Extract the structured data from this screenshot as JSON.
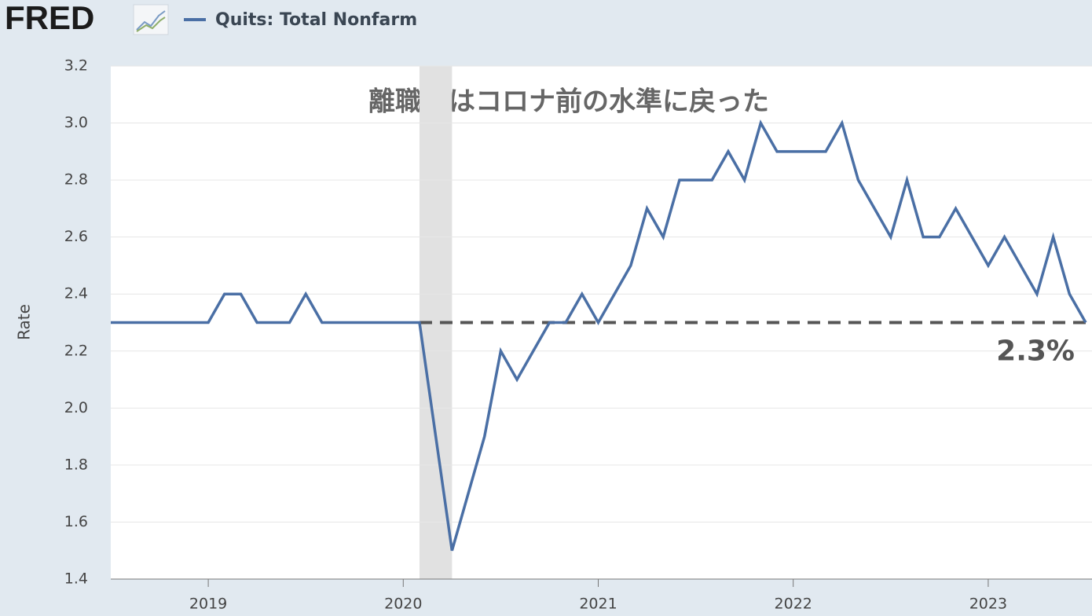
{
  "logo": "FRED",
  "chart_data": {
    "type": "line",
    "legend": "Quits: Total Nonfarm",
    "y_label": "Rate",
    "annotation": "離職率はコロナ前の水準に戻った",
    "reference_line": {
      "value": 2.3,
      "label": "2.3%",
      "color": "#555555"
    },
    "recession": [
      2020.0833,
      2020.25
    ],
    "x": [
      2018.5,
      2018.5833,
      2018.6667,
      2018.75,
      2018.8333,
      2018.9167,
      2019,
      2019.0833,
      2019.1667,
      2019.25,
      2019.3333,
      2019.4167,
      2019.5,
      2019.5833,
      2019.6667,
      2019.75,
      2019.8333,
      2019.9167,
      2020,
      2020.0833,
      2020.1667,
      2020.25,
      2020.3333,
      2020.4167,
      2020.5,
      2020.5833,
      2020.6667,
      2020.75,
      2020.8333,
      2020.9167,
      2021,
      2021.0833,
      2021.1667,
      2021.25,
      2021.3333,
      2021.4167,
      2021.5,
      2021.5833,
      2021.6667,
      2021.75,
      2021.8333,
      2021.9167,
      2022,
      2022.0833,
      2022.1667,
      2022.25,
      2022.3333,
      2022.4167,
      2022.5,
      2022.5833,
      2022.6667,
      2022.75,
      2022.8333,
      2022.9167,
      2023,
      2023.0833,
      2023.1667,
      2023.25,
      2023.3333,
      2023.4167,
      2023.5
    ],
    "series": [
      {
        "name": "Quits: Total Nonfarm",
        "color": "#4a6fa5",
        "values": [
          2.3,
          2.3,
          2.3,
          2.3,
          2.3,
          2.3,
          2.3,
          2.4,
          2.4,
          2.3,
          2.3,
          2.3,
          2.4,
          2.3,
          2.3,
          2.3,
          2.3,
          2.3,
          2.3,
          2.3,
          1.9,
          1.5,
          1.7,
          1.9,
          2.2,
          2.1,
          2.2,
          2.3,
          2.3,
          2.4,
          2.3,
          2.4,
          2.5,
          2.7,
          2.6,
          2.8,
          2.8,
          2.8,
          2.9,
          2.8,
          3.0,
          2.9,
          2.9,
          2.9,
          2.9,
          3.0,
          2.8,
          2.7,
          2.6,
          2.8,
          2.6,
          2.6,
          2.7,
          2.6,
          2.5,
          2.6,
          2.5,
          2.4,
          2.6,
          2.4,
          2.3
        ]
      }
    ],
    "xlim": [
      2018.5,
      2023.5
    ],
    "xticks": [
      2019,
      2020,
      2021,
      2022,
      2023
    ],
    "ylim": [
      1.4,
      3.2
    ],
    "yticks": [
      1.4,
      1.6,
      1.8,
      {
        "value": 2,
        "label": "2.0"
      },
      2.2,
      2.4,
      2.6,
      2.8,
      {
        "value": 3,
        "label": "3.0"
      },
      3.2
    ],
    "grid": true
  }
}
